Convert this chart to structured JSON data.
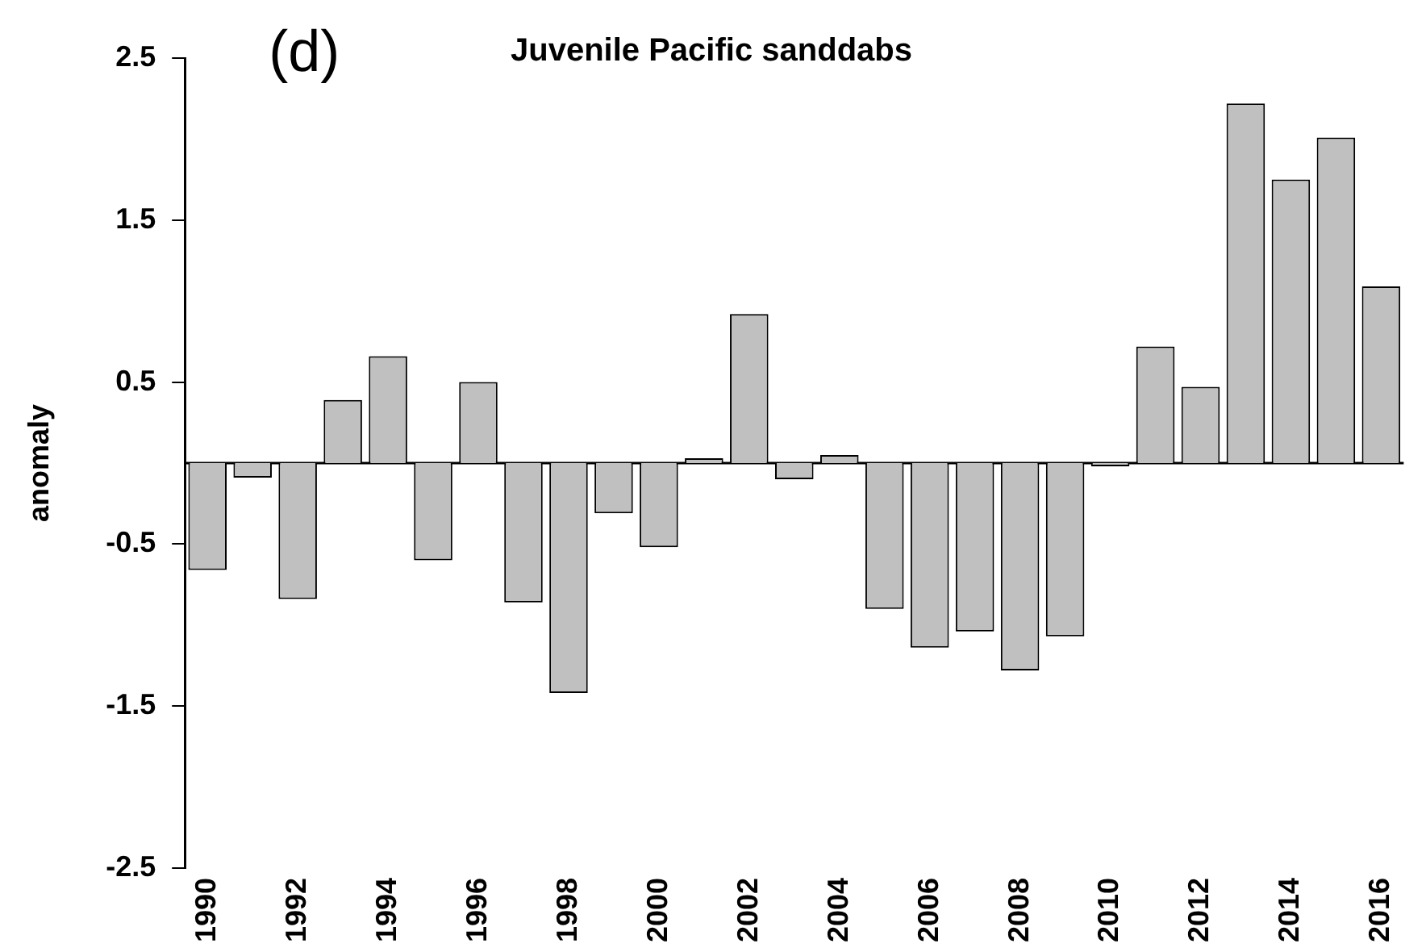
{
  "chart_data": {
    "type": "bar",
    "title": "Juvenile Pacific sanddabs",
    "ylabel": "anomaly",
    "annotations": [
      "(d)"
    ],
    "categories": [
      "1990",
      null,
      "1992",
      null,
      "1994",
      null,
      "1996",
      null,
      "1998",
      null,
      "2000",
      null,
      "2002",
      null,
      "2004",
      null,
      "2006",
      null,
      "2008",
      null,
      "2010",
      null,
      "2012",
      null,
      "2014",
      null,
      "2016"
    ],
    "values": [
      -0.66,
      -0.09,
      -0.84,
      0.39,
      0.66,
      -0.6,
      0.5,
      -0.86,
      -1.42,
      -0.31,
      -0.52,
      0.03,
      0.92,
      -0.1,
      0.05,
      -0.9,
      -1.14,
      -1.04,
      -1.28,
      -1.07,
      -0.02,
      0.72,
      0.47,
      2.22,
      1.75,
      2.01,
      1.09
    ],
    "color": "#c0c0c0",
    "ylim": [
      -2.5,
      2.5
    ],
    "yticks": [
      -2.5,
      -1.5,
      -0.5,
      0.5,
      1.5,
      2.5
    ],
    "grid": false,
    "legend": false
  }
}
